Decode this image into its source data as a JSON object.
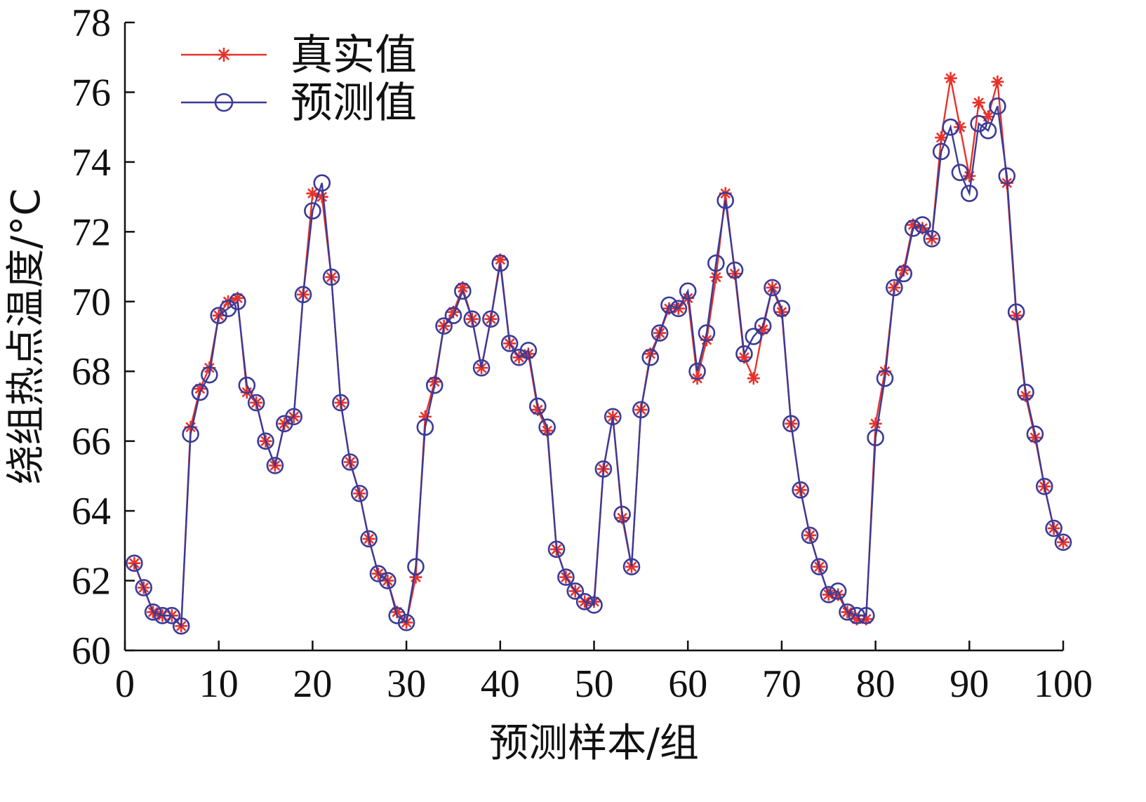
{
  "chart_data": {
    "type": "line",
    "title": "",
    "xlabel": "预测样本/组",
    "ylabel": "绕组热点温度/°C",
    "xlim": [
      0,
      100
    ],
    "ylim": [
      60,
      78
    ],
    "xticks": [
      0,
      10,
      20,
      30,
      40,
      50,
      60,
      70,
      80,
      90,
      100
    ],
    "yticks": [
      60,
      62,
      64,
      66,
      68,
      70,
      72,
      74,
      76,
      78
    ],
    "grid": false,
    "legend_position": "top-left",
    "x": [
      1,
      2,
      3,
      4,
      5,
      6,
      7,
      8,
      9,
      10,
      11,
      12,
      13,
      14,
      15,
      16,
      17,
      18,
      19,
      20,
      21,
      22,
      23,
      24,
      25,
      26,
      27,
      28,
      29,
      30,
      31,
      32,
      33,
      34,
      35,
      36,
      37,
      38,
      39,
      40,
      41,
      42,
      43,
      44,
      45,
      46,
      47,
      48,
      49,
      50,
      51,
      52,
      53,
      54,
      55,
      56,
      57,
      58,
      59,
      60,
      61,
      62,
      63,
      64,
      65,
      66,
      67,
      68,
      69,
      70,
      71,
      72,
      73,
      74,
      75,
      76,
      77,
      78,
      79,
      80,
      81,
      82,
      83,
      84,
      85,
      86,
      87,
      88,
      89,
      90,
      91,
      92,
      93,
      94,
      95,
      96,
      97,
      98,
      99,
      100
    ],
    "series": [
      {
        "name": "真实值",
        "color": "#e8322a",
        "marker": "star",
        "values": [
          62.5,
          61.8,
          61.1,
          61.0,
          61.0,
          60.7,
          66.4,
          67.5,
          68.1,
          69.6,
          70.0,
          70.1,
          67.4,
          67.1,
          66.0,
          65.3,
          66.5,
          66.7,
          70.2,
          73.1,
          73.0,
          70.7,
          67.1,
          65.4,
          64.5,
          63.2,
          62.2,
          62.0,
          61.1,
          60.8,
          62.1,
          66.7,
          67.7,
          69.3,
          69.7,
          70.4,
          69.5,
          68.1,
          69.5,
          71.2,
          68.8,
          68.4,
          68.5,
          66.9,
          66.3,
          62.9,
          62.1,
          61.7,
          61.4,
          61.4,
          65.2,
          66.7,
          63.8,
          62.4,
          66.9,
          68.5,
          69.1,
          69.8,
          69.8,
          70.1,
          67.8,
          68.9,
          70.7,
          73.1,
          70.8,
          68.4,
          67.8,
          69.2,
          70.4,
          69.7,
          66.5,
          64.6,
          63.3,
          62.4,
          61.6,
          61.6,
          61.1,
          60.9,
          60.9,
          66.5,
          68.0,
          70.4,
          70.9,
          72.2,
          72.1,
          71.8,
          74.7,
          76.4,
          75.0,
          73.6,
          75.7,
          75.3,
          76.3,
          73.4,
          69.6,
          67.3,
          66.1,
          64.7,
          63.5,
          63.1
        ]
      },
      {
        "name": "预测值",
        "color": "#3a3a98",
        "marker": "circle",
        "values": [
          62.5,
          61.8,
          61.1,
          61.0,
          61.0,
          60.7,
          66.2,
          67.4,
          67.9,
          69.6,
          69.8,
          70.0,
          67.6,
          67.1,
          66.0,
          65.3,
          66.5,
          66.7,
          70.2,
          72.6,
          73.4,
          70.7,
          67.1,
          65.4,
          64.5,
          63.2,
          62.2,
          62.0,
          61.0,
          60.8,
          62.4,
          66.4,
          67.6,
          69.3,
          69.6,
          70.3,
          69.5,
          68.1,
          69.5,
          71.1,
          68.8,
          68.4,
          68.6,
          67.0,
          66.4,
          62.9,
          62.1,
          61.7,
          61.4,
          61.3,
          65.2,
          66.7,
          63.9,
          62.4,
          66.9,
          68.4,
          69.1,
          69.9,
          69.8,
          70.3,
          68.0,
          69.1,
          71.1,
          72.9,
          70.9,
          68.5,
          69.0,
          69.3,
          70.4,
          69.8,
          66.5,
          64.6,
          63.3,
          62.4,
          61.6,
          61.7,
          61.1,
          61.0,
          61.0,
          66.1,
          67.8,
          70.4,
          70.8,
          72.1,
          72.2,
          71.8,
          74.3,
          75.0,
          73.7,
          73.1,
          75.1,
          74.9,
          75.6,
          73.6,
          69.7,
          67.4,
          66.2,
          64.7,
          63.5,
          63.1
        ]
      }
    ]
  }
}
